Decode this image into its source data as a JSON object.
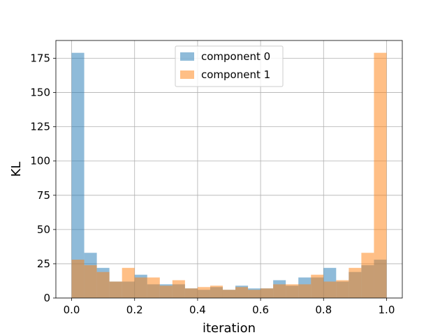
{
  "chart_data": {
    "type": "bar",
    "subtype": "histogram",
    "xlabel": "iteration",
    "ylabel": "KL",
    "xlim": [
      -0.05,
      1.05
    ],
    "ylim": [
      0,
      188
    ],
    "xticks": [
      0.0,
      0.2,
      0.4,
      0.6,
      0.8,
      1.0
    ],
    "xtick_labels": [
      "0.0",
      "0.2",
      "0.4",
      "0.6",
      "0.8",
      "1.0"
    ],
    "yticks": [
      0,
      25,
      50,
      75,
      100,
      125,
      150,
      175
    ],
    "ytick_labels": [
      "0",
      "25",
      "50",
      "75",
      "100",
      "125",
      "150",
      "175"
    ],
    "grid": true,
    "legend_position": "upper-center",
    "bin_edges": [
      0.0,
      0.04,
      0.08,
      0.12,
      0.16,
      0.2,
      0.24,
      0.28,
      0.32,
      0.36,
      0.4,
      0.44,
      0.48,
      0.52,
      0.56,
      0.6,
      0.64,
      0.68,
      0.72,
      0.76,
      0.8,
      0.84,
      0.88,
      0.92,
      0.96,
      1.0
    ],
    "series": [
      {
        "name": "component 0",
        "color": "#1f77b4",
        "alpha": 0.5,
        "values": [
          179,
          33,
          22,
          12,
          12,
          17,
          10,
          10,
          10,
          7,
          6,
          8,
          6,
          9,
          7,
          7,
          13,
          9,
          15,
          15,
          22,
          12,
          19,
          24,
          28
        ]
      },
      {
        "name": "component 1",
        "color": "#ff7f0e",
        "alpha": 0.5,
        "values": [
          28,
          24,
          19,
          12,
          22,
          15,
          15,
          9,
          13,
          7,
          8,
          9,
          6,
          8,
          6,
          7,
          10,
          10,
          10,
          17,
          12,
          13,
          22,
          33,
          179
        ]
      }
    ]
  }
}
